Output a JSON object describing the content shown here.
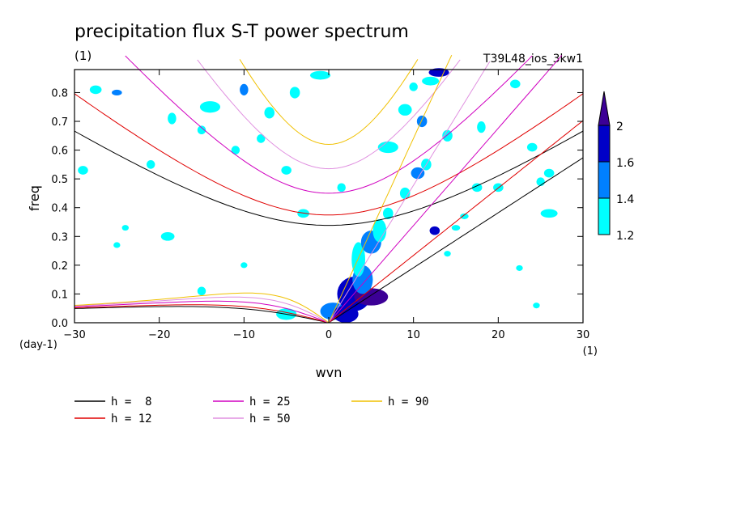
{
  "chart_data": {
    "type": "contour",
    "title": "precipitation flux S-T power spectrum",
    "units_label": "(1)",
    "run_label": "T39L48_ios_3kw1",
    "xlabel": "wvn",
    "xunit": "(1)",
    "ylabel": "freq",
    "yunit": "(day-1)",
    "xlim": [
      -30,
      30
    ],
    "ylim": [
      0.0,
      0.88
    ],
    "x_ticks": [
      -30,
      -20,
      -10,
      0,
      10,
      20,
      30
    ],
    "y_ticks": [
      0.0,
      0.1,
      0.2,
      0.3,
      0.4,
      0.5,
      0.6,
      0.7,
      0.8
    ],
    "colorbar": {
      "levels": [
        1.2,
        1.4,
        1.6,
        2
      ],
      "colors": [
        "#00ffff",
        "#0080ff",
        "#0000c8",
        "#3c0096"
      ]
    },
    "dispersion_curves": [
      {
        "name": "h =  8",
        "h": 8,
        "color": "#000000"
      },
      {
        "name": "h = 12",
        "h": 12,
        "color": "#e00000"
      },
      {
        "name": "h = 25",
        "h": 25,
        "color": "#d000c0"
      },
      {
        "name": "h = 50",
        "h": 50,
        "color": "#e090e0"
      },
      {
        "name": "h = 90",
        "h": 90,
        "color": "#f0c000"
      }
    ]
  }
}
